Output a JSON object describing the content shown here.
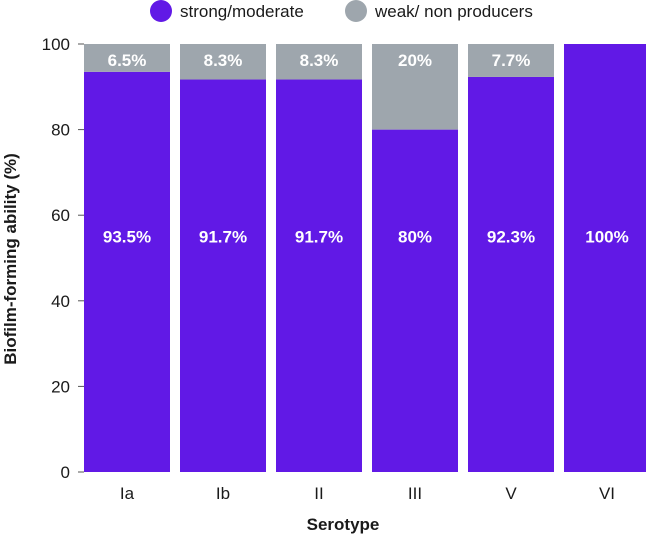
{
  "chart_data": {
    "type": "bar",
    "stacked": true,
    "title": "",
    "xlabel": "Serotype",
    "ylabel": "Biofilm-forming ability (%)",
    "ylim": [
      0,
      100
    ],
    "yticks": [
      0,
      20,
      40,
      60,
      80,
      100
    ],
    "categories": [
      "Ia",
      "Ib",
      "II",
      "III",
      "V",
      "VI"
    ],
    "series": [
      {
        "name": "strong/moderate",
        "color": "#6119e6",
        "values": [
          93.5,
          91.7,
          91.7,
          80,
          92.3,
          100
        ],
        "labels": [
          "93.5%",
          "91.7%",
          "91.7%",
          "80%",
          "92.3%",
          "100%"
        ]
      },
      {
        "name": "weak/ non producers",
        "color": "#9ea6ad",
        "values": [
          6.5,
          8.3,
          8.3,
          20,
          7.7,
          0
        ],
        "labels": [
          "6.5%",
          "8.3%",
          "8.3%",
          "20%",
          "7.7%",
          ""
        ]
      }
    ],
    "legend_position": "top"
  }
}
